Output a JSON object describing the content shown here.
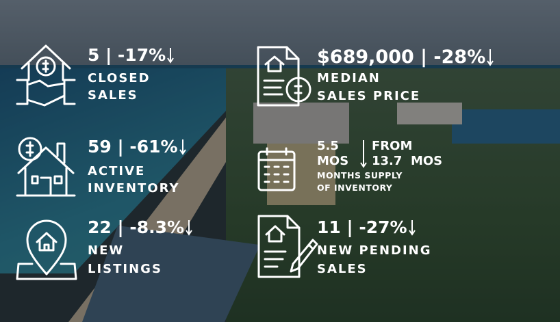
{
  "tiles": [
    {
      "stat": "5 | -17%",
      "label": [
        "CLOSED",
        "SALES"
      ]
    },
    {
      "stat": "$689,000 | -28%",
      "label": [
        "MEDIAN",
        "SALES PRICE"
      ]
    },
    {
      "stat": "59 | -61%",
      "label": [
        "ACTIVE",
        "INVENTORY"
      ]
    },
    {
      "value_lines": [
        "5.5",
        "MOS"
      ],
      "change_lines": [
        "FROM",
        "13.7  MOS"
      ],
      "label": [
        "MONTHS SUPPLY",
        "OF INVENTORY"
      ]
    },
    {
      "stat": "22 | -8.3%",
      "label": [
        "NEW",
        "LISTINGS"
      ]
    },
    {
      "stat": "11 | -27%",
      "label": [
        "NEW PENDING",
        "SALES"
      ]
    }
  ]
}
